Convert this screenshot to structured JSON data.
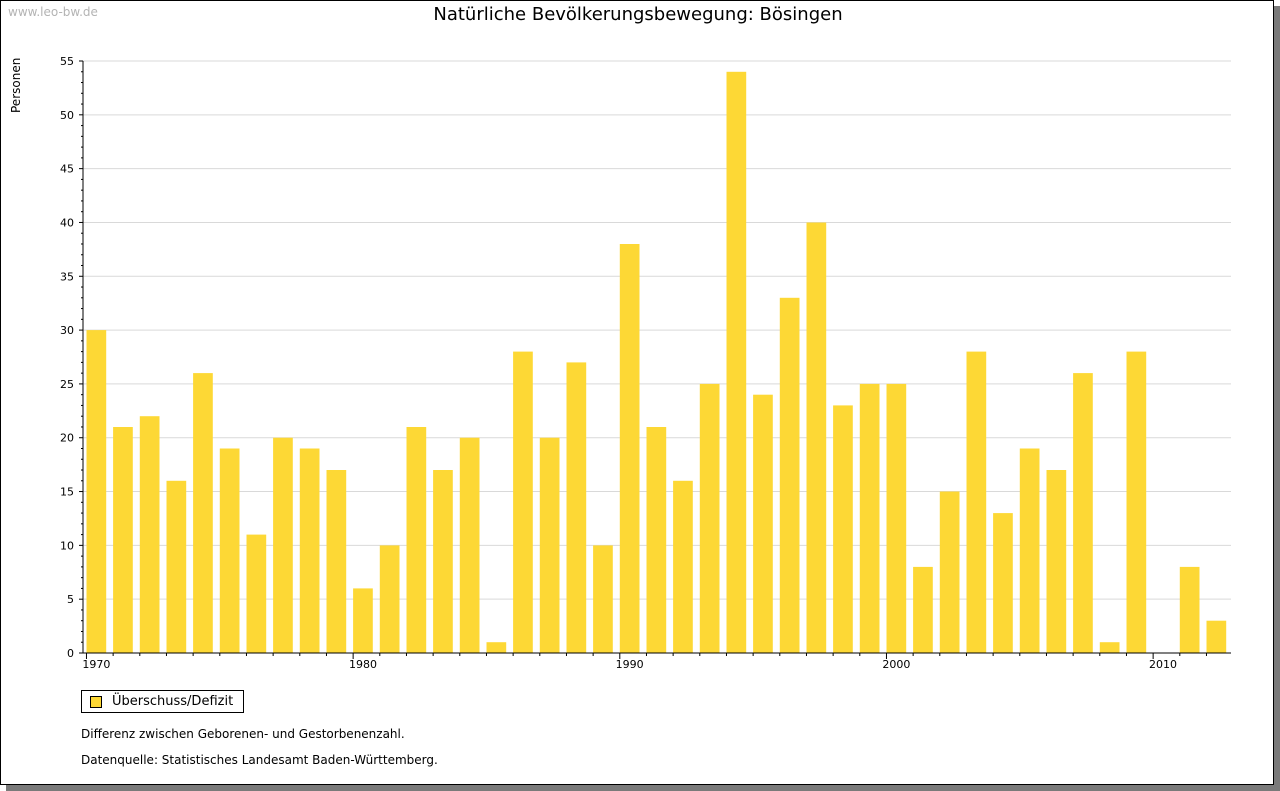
{
  "watermark": "www.leo-bw.de",
  "footnote": "Differenz zwischen Geborenen- und Gestorbenenzahl.",
  "source": "Datenquelle: Statistisches Landesamt Baden-Württemberg.",
  "chart_data": {
    "type": "bar",
    "title": "Natürliche Bevölkerungsbewegung: Bösingen",
    "xlabel": "",
    "ylabel": "Personen",
    "ylim": [
      0,
      55
    ],
    "yticks": [
      0,
      5,
      10,
      15,
      20,
      25,
      30,
      35,
      40,
      45,
      50,
      55
    ],
    "xtick_labels": [
      "1970",
      "1980",
      "1990",
      "2000",
      "2010"
    ],
    "grid": true,
    "legend_position": "bottom-left",
    "bar_color": "#fdd835",
    "categories": [
      1970,
      1971,
      1972,
      1973,
      1974,
      1975,
      1976,
      1977,
      1978,
      1979,
      1980,
      1981,
      1982,
      1983,
      1984,
      1985,
      1986,
      1987,
      1988,
      1989,
      1990,
      1991,
      1992,
      1993,
      1994,
      1995,
      1996,
      1997,
      1998,
      1999,
      2000,
      2001,
      2002,
      2003,
      2004,
      2005,
      2006,
      2007,
      2008,
      2009,
      2010,
      2011,
      2012
    ],
    "series": [
      {
        "name": "Überschuss/Defizit",
        "values": [
          30,
          21,
          22,
          16,
          26,
          19,
          11,
          20,
          19,
          17,
          6,
          10,
          21,
          17,
          20,
          1,
          28,
          20,
          27,
          10,
          38,
          21,
          16,
          25,
          54,
          24,
          33,
          40,
          23,
          25,
          25,
          8,
          15,
          28,
          13,
          19,
          17,
          26,
          1,
          28,
          0,
          8,
          3
        ]
      }
    ]
  }
}
